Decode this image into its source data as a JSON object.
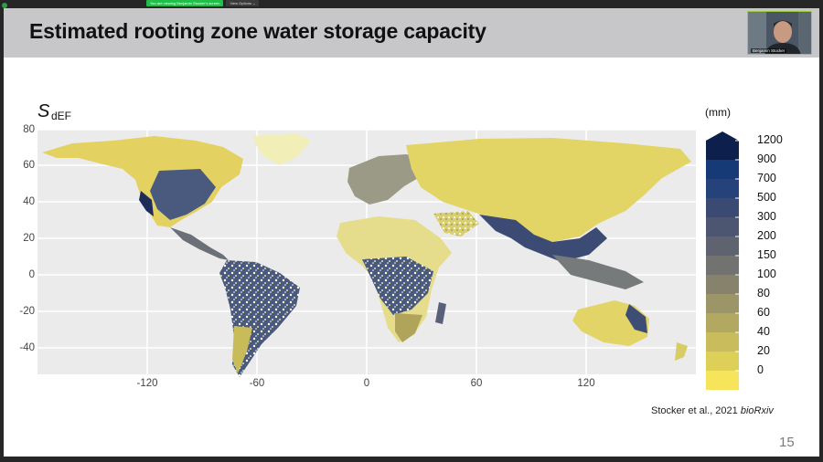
{
  "meeting": {
    "share_banner": "You are viewing Benjamin Stocker's screen",
    "view_options": "View Options ⌄"
  },
  "slide": {
    "title": "Estimated rooting zone water storage capacity",
    "variable_symbol": "S",
    "variable_subscript": "dEF",
    "citation_main": "Stocker et al., 2021 ",
    "citation_journal": "bioRxiv",
    "slide_number": "15"
  },
  "webcam": {
    "participant_name": "Benjamin Stocker"
  },
  "chart_data": {
    "type": "heatmap",
    "title": "",
    "x_axis": {
      "ticks": [
        "-120",
        "-60",
        "0",
        "60",
        "120"
      ],
      "range": [
        -180,
        180
      ]
    },
    "y_axis": {
      "ticks": [
        "80",
        "60",
        "40",
        "20",
        "0",
        "-20",
        "-40"
      ],
      "range": [
        -56,
        84
      ]
    },
    "grid": true,
    "legend": {
      "position": "right",
      "unit": "(mm)",
      "labels": [
        "1200",
        "900",
        "700",
        "500",
        "300",
        "200",
        "150",
        "100",
        "80",
        "60",
        "40",
        "20",
        "0"
      ],
      "colors": [
        "#0c1f4d",
        "#163a75",
        "#25427a",
        "#3a4a72",
        "#4c5670",
        "#5f6370",
        "#727271",
        "#86826c",
        "#9c9568",
        "#b2a862",
        "#c9bc5c",
        "#decf58",
        "#f6e55a"
      ]
    }
  }
}
